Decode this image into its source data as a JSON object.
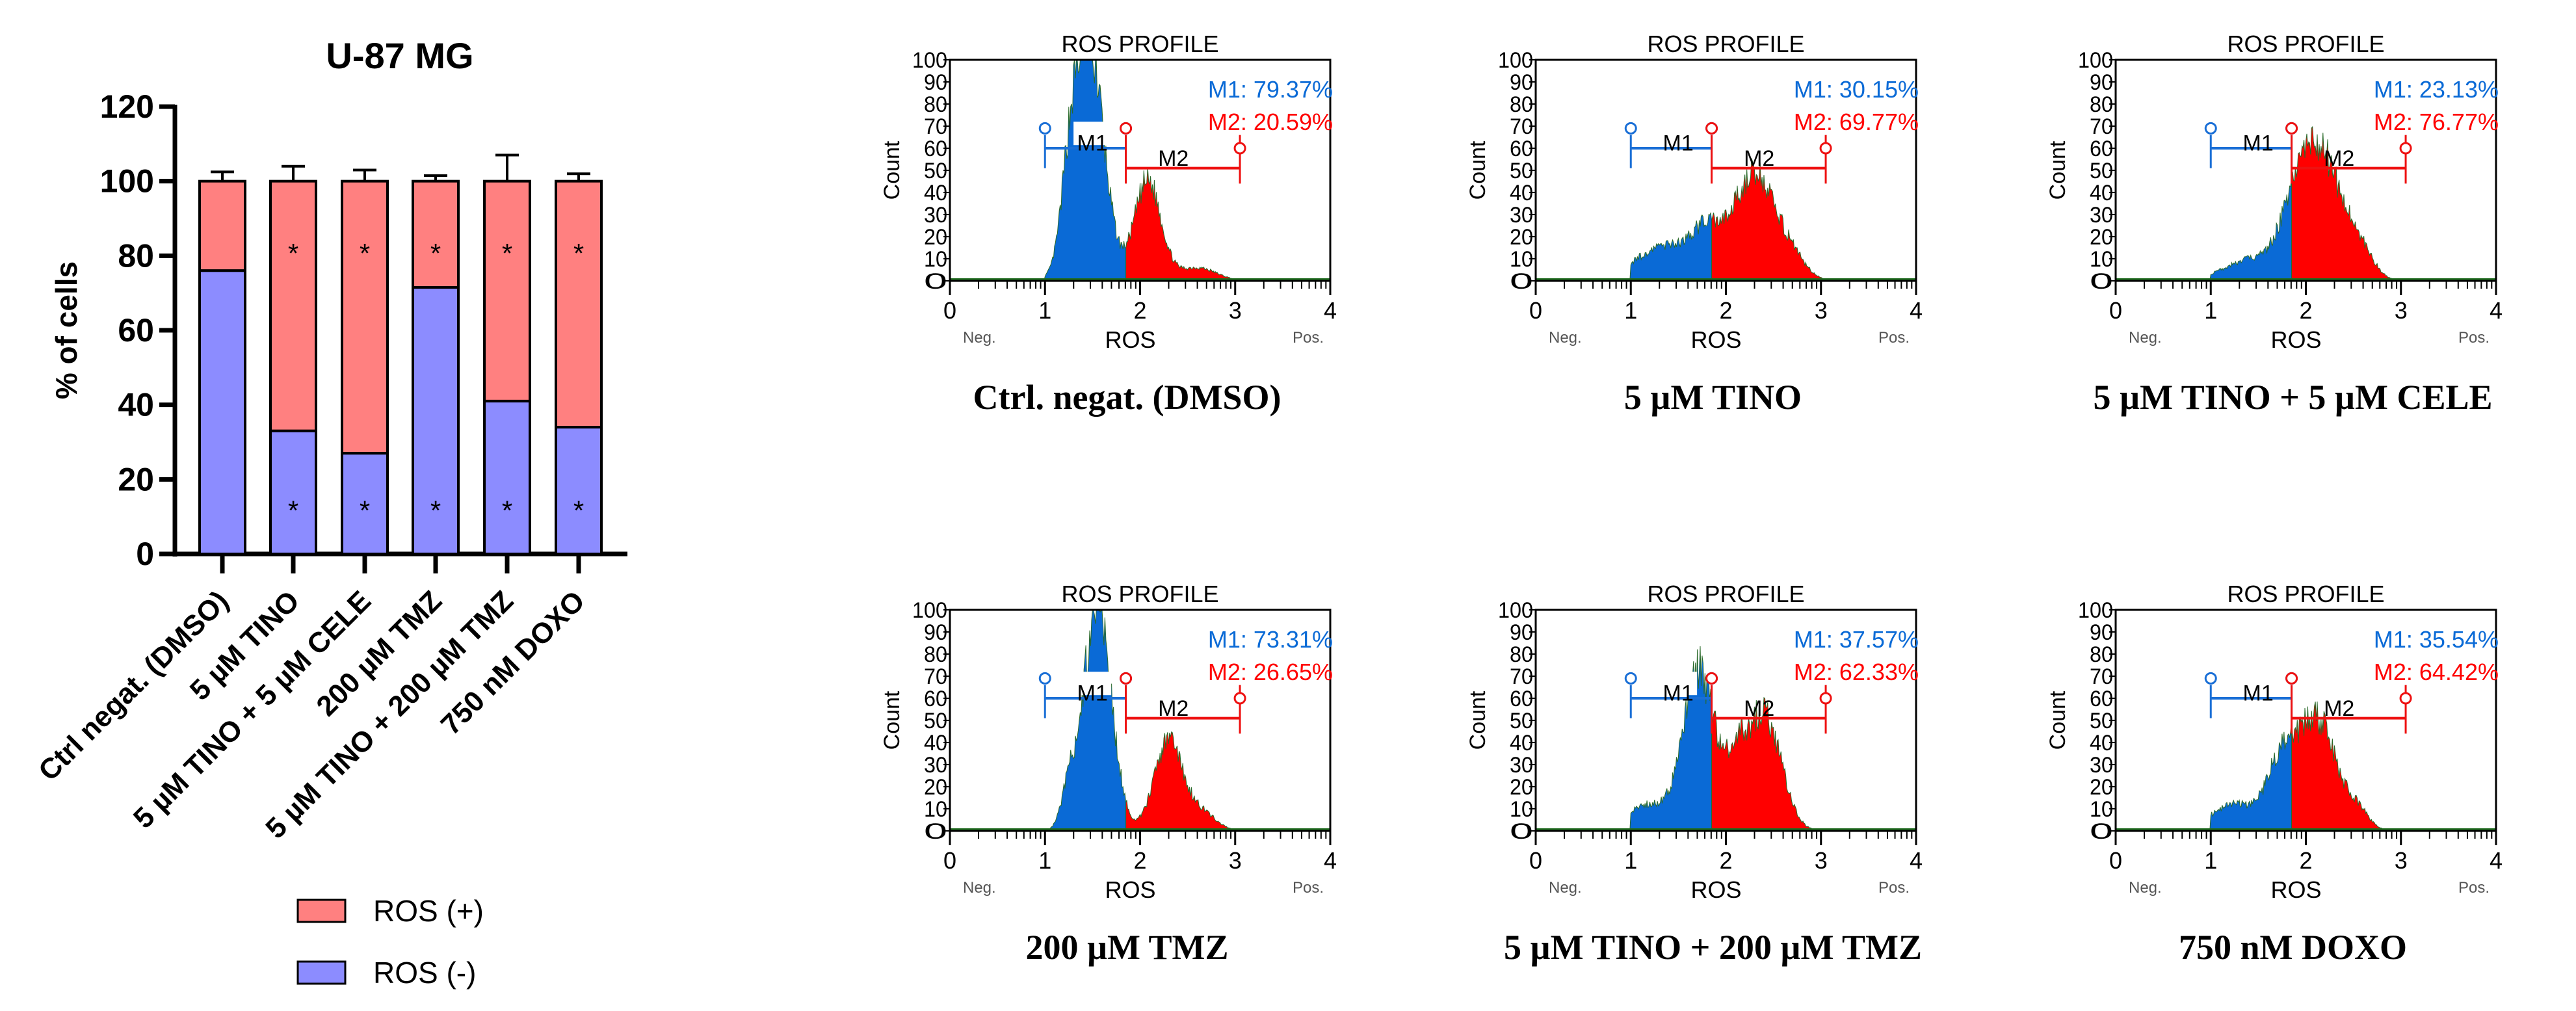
{
  "chart_data": [
    {
      "type": "bar",
      "stacked": true,
      "title": "U-87 MG",
      "xlabel": "",
      "ylabel": "% of cells",
      "ylim": [
        0,
        120
      ],
      "yticks": [
        0,
        20,
        40,
        60,
        80,
        100,
        120
      ],
      "categories": [
        "Ctrl negat. (DMSO)",
        "5 µM TINO",
        "5 µM TINO + 5 µM CELE",
        "200 µM TMZ",
        "5 µM TINO + 200 µM TMZ",
        "750 nM DOXO"
      ],
      "series": [
        {
          "name": "ROS (-)",
          "color": "#8c8cff",
          "values": [
            76,
            33,
            27,
            71.5,
            41,
            34
          ],
          "error_top": [
            78.5,
            37,
            30,
            73,
            48,
            36
          ],
          "significance": [
            "",
            "*",
            "*",
            "*",
            "*",
            "*"
          ]
        },
        {
          "name": "ROS (+)",
          "color": "#ff8080",
          "values": [
            24,
            67,
            73,
            28.5,
            59,
            66
          ],
          "error_top": [
            102.5,
            104,
            103,
            101.5,
            107,
            102
          ],
          "significance": [
            "",
            "*",
            "*",
            "*",
            "*",
            "*"
          ]
        }
      ],
      "legend": [
        "ROS (+)",
        "ROS (-)"
      ],
      "legend_position": "bottom"
    },
    {
      "type": "area",
      "panels": [
        {
          "title": "ROS PROFILE",
          "caption": "Ctrl. negat. (DMSO)",
          "m1": "M1: 79.37%",
          "m2": "M2: 20.59%",
          "peaks": [
            [
              1.45,
              0.16,
              112
            ],
            [
              1.25,
              0.08,
              20
            ],
            [
              2.08,
              0.14,
              45
            ],
            [
              2.6,
              0.2,
              6
            ]
          ]
        },
        {
          "title": "ROS PROFILE",
          "caption": "5 µM TINO",
          "m1": "M1: 30.15%",
          "m2": "M2: 69.77%",
          "peaks": [
            [
              1.4,
              0.35,
              16
            ],
            [
              1.8,
              0.15,
              15
            ],
            [
              2.3,
              0.22,
              48
            ],
            [
              2.7,
              0.15,
              8
            ]
          ]
        },
        {
          "title": "ROS PROFILE",
          "caption": "5 µM TINO + 5 µM CELE",
          "m1": "M1: 23.13%",
          "m2": "M2: 76.77%",
          "peaks": [
            [
              1.45,
              0.3,
              10
            ],
            [
              1.85,
              0.15,
              20
            ],
            [
              2.15,
              0.2,
              58
            ],
            [
              2.55,
              0.15,
              15
            ]
          ]
        },
        {
          "title": "ROS PROFILE",
          "caption": "200 µM TMZ",
          "m1": "M1: 73.31%",
          "m2": "M2: 26.65%",
          "peaks": [
            [
              1.55,
              0.15,
              100
            ],
            [
              1.25,
              0.08,
              15
            ],
            [
              2.3,
              0.15,
              40
            ],
            [
              2.65,
              0.15,
              8
            ]
          ]
        },
        {
          "title": "ROS PROFILE",
          "caption": "5 µM TINO + 200 µM TMZ",
          "m1": "M1: 37.57%",
          "m2": "M2: 62.33%",
          "peaks": [
            [
              1.2,
              0.25,
              12
            ],
            [
              1.72,
              0.16,
              72
            ],
            [
              2.4,
              0.18,
              52
            ],
            [
              2.1,
              0.12,
              25
            ]
          ]
        },
        {
          "title": "ROS PROFILE",
          "caption": "750 nM DOXO",
          "m1": "M1: 35.54%",
          "m2": "M2: 64.42%",
          "peaks": [
            [
              1.25,
              0.25,
              12
            ],
            [
              1.75,
              0.15,
              30
            ],
            [
              2.12,
              0.2,
              50
            ],
            [
              2.55,
              0.12,
              8
            ]
          ]
        }
      ],
      "xlabel": "ROS",
      "xlabel_left": "Neg.",
      "xlabel_right": "Pos.",
      "ylabel": "Count",
      "xlim": [
        0,
        4
      ],
      "ylim": [
        0,
        100
      ],
      "xticks": [
        0,
        1,
        2,
        3,
        4
      ],
      "yticks": [
        0,
        10,
        20,
        30,
        40,
        50,
        60,
        70,
        80,
        90,
        100
      ],
      "gate_split": 1.85,
      "gates": [
        {
          "label": "M1",
          "from": 1.0,
          "to": 1.85,
          "color": "#1a6fd6"
        },
        {
          "label": "M2",
          "from": 1.85,
          "to": 3.05,
          "color": "#ee1111"
        }
      ],
      "colors": {
        "m1": "#0a6ad6",
        "m2": "#ff0000",
        "baseline": "#1f6b1f"
      }
    }
  ]
}
